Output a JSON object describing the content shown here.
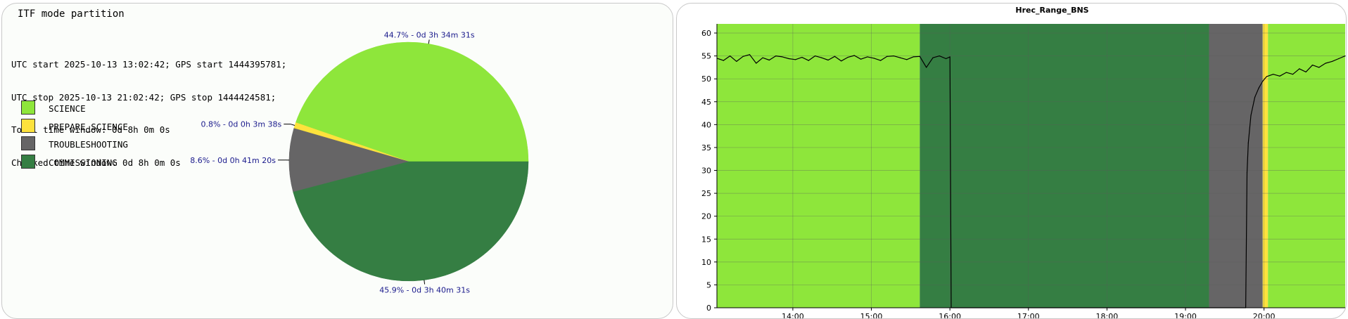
{
  "left_panel": {
    "title": "ITF mode partition",
    "info_lines": [
      "UTC start 2025-10-13 13:02:42; GPS start 1444395781;",
      "UTC stop 2025-10-13 21:02:42; GPS stop 1444424581;",
      "Total time window: 0d 8h 0m 0s",
      "Checked time window: 0d 8h 0m 0s"
    ],
    "legend": [
      {
        "label": "SCIENCE",
        "color": "#8ee63b"
      },
      {
        "label": "PREPARE_SCIENCE",
        "color": "#fde23d"
      },
      {
        "label": "TROUBLESHOOTING",
        "color": "#666566"
      },
      {
        "label": "COMMISSIONING",
        "color": "#357e43"
      }
    ]
  },
  "chart_data": [
    {
      "type": "pie",
      "slices": [
        {
          "name": "SCIENCE",
          "value": 44.7,
          "label": "44.7% - 0d 3h 34m 31s",
          "color": "#8ee63b"
        },
        {
          "name": "PREPARE_SCIENCE",
          "value": 0.8,
          "label": "0.8% - 0d 0h 3m 38s",
          "color": "#fde23d"
        },
        {
          "name": "TROUBLESHOOTING",
          "value": 8.6,
          "label": "8.6% - 0d 0h 41m 20s",
          "color": "#666566"
        },
        {
          "name": "COMMISSIONING",
          "value": 45.9,
          "label": "45.9% - 0d 3h 40m 31s",
          "color": "#357e43"
        }
      ],
      "start_angle_deg": 0,
      "direction": "counterclockwise"
    },
    {
      "type": "line",
      "title": "Hrec_Range_BNS",
      "xlabel": "",
      "ylabel": "",
      "xlim": [
        "13:02",
        "21:02"
      ],
      "ylim": [
        0,
        62
      ],
      "yticks": [
        0,
        5,
        10,
        15,
        20,
        25,
        30,
        35,
        40,
        45,
        50,
        55,
        60
      ],
      "xticks": [
        "14:00",
        "15:00",
        "16:00",
        "17:00",
        "18:00",
        "19:00",
        "20:00"
      ],
      "grid": true,
      "background_bands": [
        {
          "mode": "SCIENCE",
          "start": "13:02",
          "end": "15:37",
          "color": "#8ee63b"
        },
        {
          "mode": "COMMISSIONING",
          "start": "15:37",
          "end": "19:18",
          "color": "#357e43"
        },
        {
          "mode": "TROUBLESHOOTING",
          "start": "19:18",
          "end": "19:59",
          "color": "#666566"
        },
        {
          "mode": "PREPARE_SCIENCE",
          "start": "19:59",
          "end": "20:03",
          "color": "#fde23d"
        },
        {
          "mode": "SCIENCE",
          "start": "20:03",
          "end": "21:02",
          "color": "#8ee63b"
        }
      ],
      "series": [
        {
          "color": "#000000",
          "x": [
            "13:02",
            "13:07",
            "13:12",
            "13:17",
            "13:22",
            "13:27",
            "13:32",
            "13:37",
            "13:42",
            "13:47",
            "13:52",
            "13:57",
            "14:02",
            "14:07",
            "14:12",
            "14:17",
            "14:22",
            "14:27",
            "14:32",
            "14:37",
            "14:42",
            "14:47",
            "14:52",
            "14:57",
            "15:02",
            "15:07",
            "15:12",
            "15:17",
            "15:22",
            "15:27",
            "15:32",
            "15:37",
            "15:42",
            "15:47",
            "15:52",
            "15:57",
            "16:00",
            "16:01",
            "19:46",
            "19:47",
            "19:48",
            "19:50",
            "19:53",
            "19:56",
            "19:59",
            "20:02",
            "20:07",
            "20:12",
            "20:17",
            "20:22",
            "20:27",
            "20:32",
            "20:37",
            "20:42",
            "20:47",
            "20:52",
            "20:57",
            "21:02"
          ],
          "y": [
            54.5,
            54.0,
            55.0,
            53.8,
            54.9,
            55.3,
            53.4,
            54.6,
            54.1,
            55.0,
            54.8,
            54.4,
            54.2,
            54.7,
            54.0,
            55.0,
            54.6,
            54.1,
            54.9,
            53.9,
            54.7,
            55.1,
            54.3,
            54.8,
            54.5,
            54.0,
            54.9,
            55.0,
            54.6,
            54.2,
            54.8,
            54.9,
            52.5,
            54.6,
            55.0,
            54.4,
            54.8,
            0,
            0,
            29.5,
            36.0,
            42.0,
            46.0,
            48.0,
            49.5,
            50.5,
            51.0,
            50.6,
            51.4,
            51.0,
            52.2,
            51.5,
            53.0,
            52.5,
            53.4,
            53.8,
            54.4,
            55.0
          ]
        }
      ]
    }
  ]
}
